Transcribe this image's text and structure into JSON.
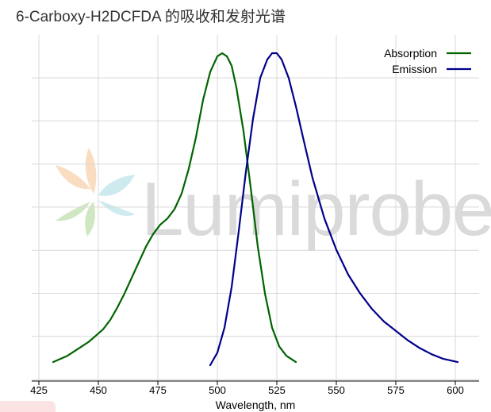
{
  "title": "6-Carboxy-H2DCFDA 的吸收和发射光谱",
  "watermark": "Lumiprobe",
  "chart_data": {
    "type": "line",
    "title": "6-Carboxy-H2DCFDA 的吸收和发射光谱",
    "xlabel": "Wavelength, nm",
    "ylabel": "",
    "xlim": [
      422,
      610
    ],
    "ylim": [
      0,
      1.05
    ],
    "xticks": [
      425,
      450,
      475,
      500,
      525,
      550,
      575,
      600
    ],
    "grid": true,
    "legend_position": "top-right",
    "series": [
      {
        "name": "Absorption",
        "color": "#006400",
        "x": [
          431,
          434,
          437,
          440,
          443,
          446,
          449,
          452,
          455,
          458,
          461,
          464,
          467,
          470,
          473,
          476,
          479,
          482,
          485,
          488,
          491,
          494,
          497,
          500,
          502,
          504,
          506,
          508,
          511,
          514,
          517,
          520,
          523,
          526,
          529,
          533
        ],
        "y": [
          0.01,
          0.02,
          0.03,
          0.045,
          0.06,
          0.075,
          0.095,
          0.115,
          0.145,
          0.185,
          0.23,
          0.28,
          0.33,
          0.38,
          0.42,
          0.45,
          0.47,
          0.5,
          0.55,
          0.63,
          0.73,
          0.85,
          0.94,
          0.99,
          1.0,
          0.99,
          0.96,
          0.89,
          0.75,
          0.57,
          0.38,
          0.23,
          0.12,
          0.06,
          0.03,
          0.01
        ]
      },
      {
        "name": "Emission",
        "color": "#00008b",
        "x": [
          497,
          500,
          503,
          506,
          509,
          512,
          515,
          518,
          521,
          523,
          525,
          527,
          530,
          533,
          536,
          540,
          545,
          550,
          555,
          560,
          565,
          570,
          575,
          580,
          585,
          590,
          595,
          601
        ],
        "y": [
          0.0,
          0.04,
          0.12,
          0.25,
          0.43,
          0.62,
          0.79,
          0.92,
          0.98,
          1.0,
          1.0,
          0.98,
          0.92,
          0.83,
          0.73,
          0.6,
          0.47,
          0.37,
          0.29,
          0.23,
          0.18,
          0.14,
          0.11,
          0.08,
          0.055,
          0.035,
          0.02,
          0.01
        ]
      }
    ]
  }
}
